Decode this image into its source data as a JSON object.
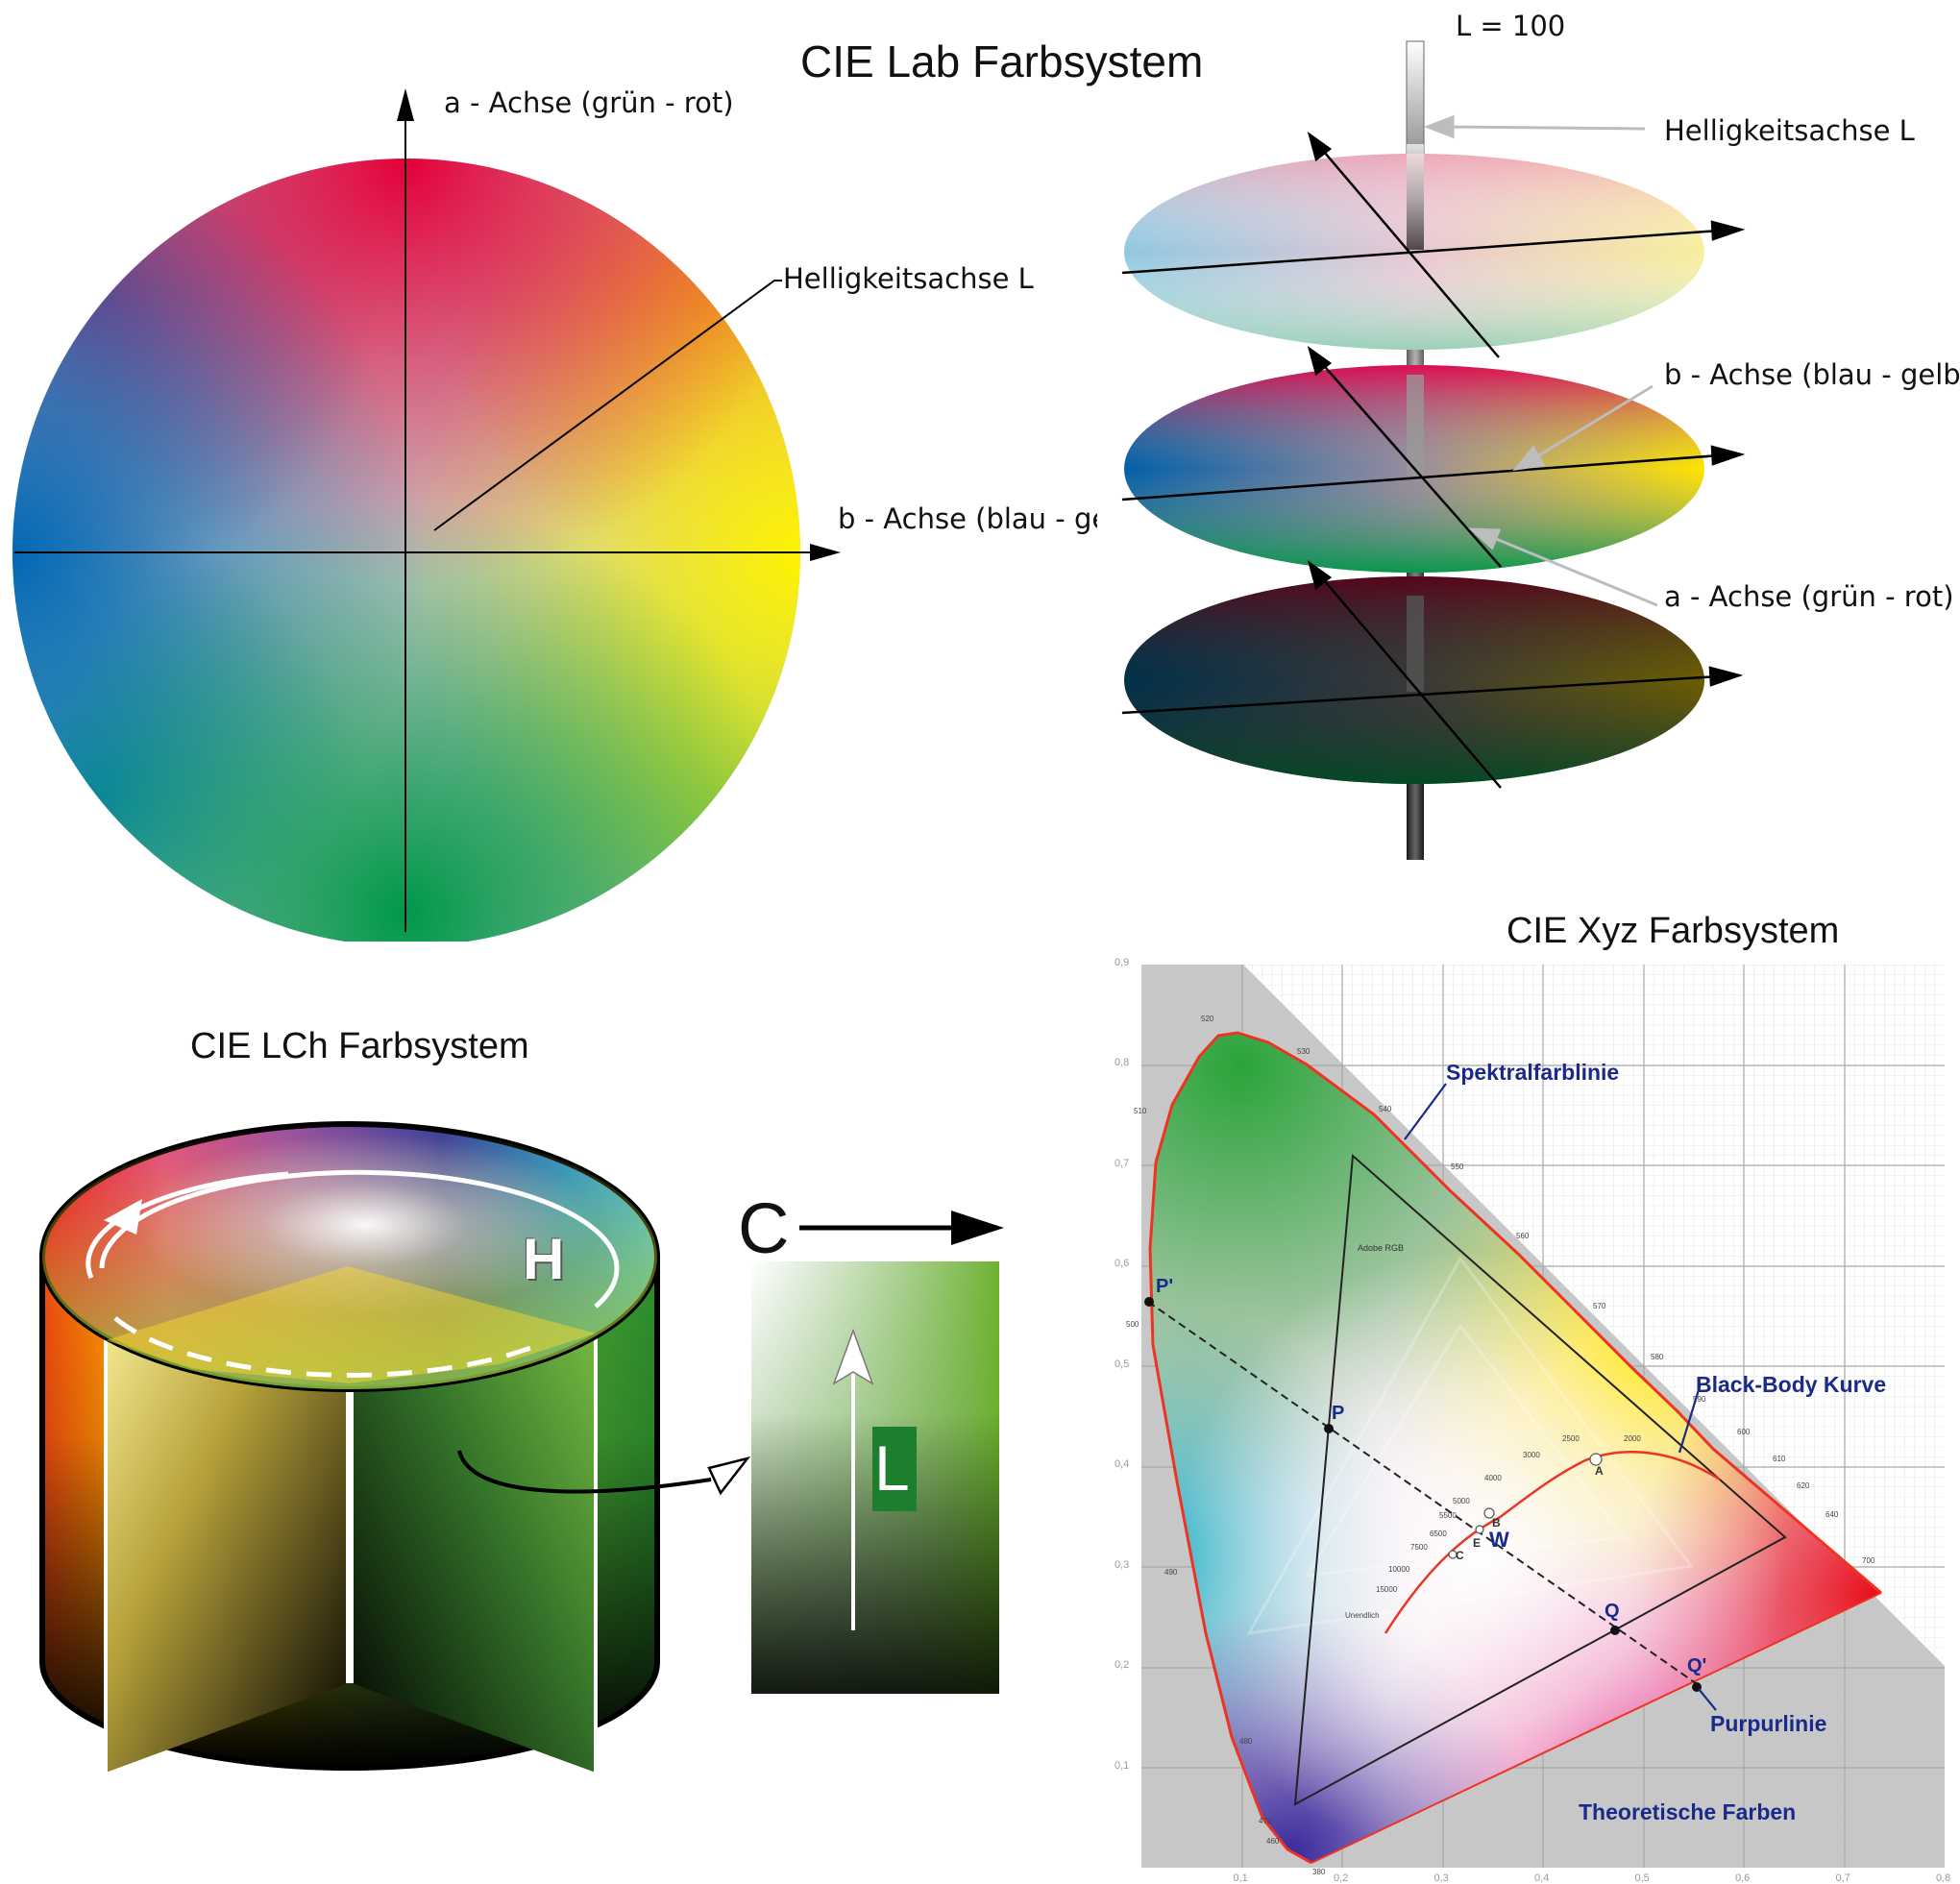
{
  "lab": {
    "title": "CIE Lab Farbsystem",
    "sphere_labels": {
      "a_axis": "a - Achse (grün - rot)",
      "l_axis": "Helligkeitsachse L",
      "b_axis": "b - Achse (blau - gelk"
    },
    "discs_labels": {
      "l_max": "L = 100",
      "l_axis": "Helligkeitsachse L",
      "b_axis": "b - Achse (blau - gelb)",
      "a_axis": "a - Achse (grün - rot)"
    }
  },
  "lch": {
    "title": "CIE LCh Farbsystem",
    "h_label": "H",
    "c_label": "C",
    "l_label": "L"
  },
  "xyz": {
    "title": "CIE Xyz Farbsystem",
    "annotations": {
      "spectral": "Spektralfarblinie",
      "blackbody": "Black-Body Kurve",
      "purple": "Purpurlinie",
      "theoretical": "Theoretische Farben",
      "adobe": "Adobe RGB"
    },
    "points": [
      "P'",
      "P",
      "Q",
      "Q'",
      "W",
      "A",
      "B",
      "C",
      "E"
    ],
    "x_ticks": [
      "0,1",
      "0,2",
      "0,3",
      "0,4",
      "0,5",
      "0,6",
      "0,7",
      "0,8"
    ],
    "y_ticks": [
      "0,1",
      "0,2",
      "0,3",
      "0,4",
      "0,5",
      "0,6",
      "0,7",
      "0,8",
      "0,9"
    ],
    "wavelengths": [
      "380",
      "460",
      "470",
      "480",
      "490",
      "500",
      "510",
      "520",
      "530",
      "540",
      "550",
      "560",
      "570",
      "580",
      "590",
      "600",
      "610",
      "620",
      "640",
      "700"
    ],
    "temperatures": [
      "Unendlich",
      "15000",
      "10000",
      "7500",
      "6500",
      "5500",
      "5000",
      "4000",
      "3000",
      "2500",
      "2000"
    ]
  },
  "colors": {
    "red": "#e8003c",
    "yellow": "#ffee00",
    "green": "#009a44",
    "blue": "#0068b3",
    "annotation_blue": "#1a2a8a",
    "locus_red": "#ee3322"
  }
}
